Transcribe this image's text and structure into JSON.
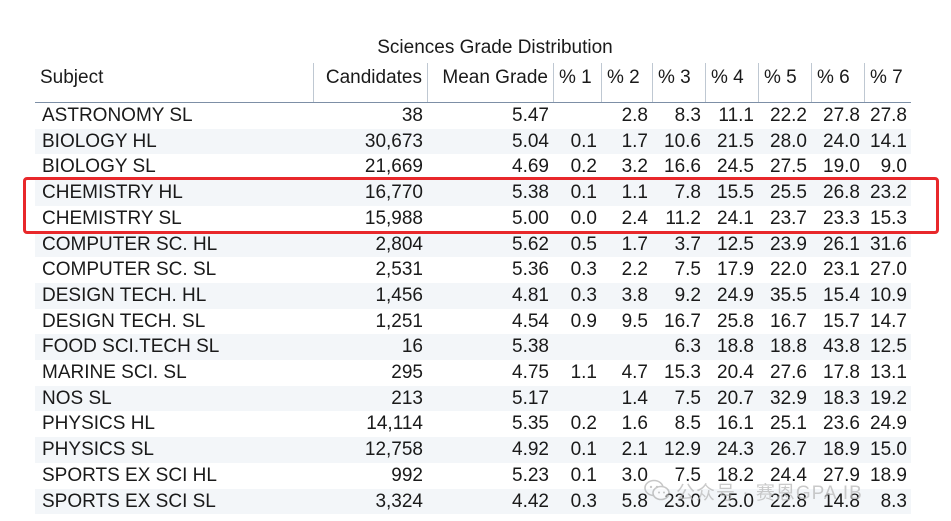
{
  "chart_data": {
    "type": "table",
    "title": "Sciences Grade Distribution",
    "columns": [
      "Subject",
      "Candidates",
      "Mean Grade",
      "% 1",
      "% 2",
      "% 3",
      "% 4",
      "% 5",
      "% 6",
      "% 7"
    ],
    "rows": [
      [
        "ASTRONOMY SL",
        "38",
        "5.47",
        "",
        "2.8",
        "8.3",
        "11.1",
        "22.2",
        "27.8",
        "27.8"
      ],
      [
        "BIOLOGY HL",
        "30,673",
        "5.04",
        "0.1",
        "1.7",
        "10.6",
        "21.5",
        "28.0",
        "24.0",
        "14.1"
      ],
      [
        "BIOLOGY SL",
        "21,669",
        "4.69",
        "0.2",
        "3.2",
        "16.6",
        "24.5",
        "27.5",
        "19.0",
        "9.0"
      ],
      [
        "CHEMISTRY HL",
        "16,770",
        "5.38",
        "0.1",
        "1.1",
        "7.8",
        "15.5",
        "25.5",
        "26.8",
        "23.2"
      ],
      [
        "CHEMISTRY SL",
        "15,988",
        "5.00",
        "0.0",
        "2.4",
        "11.2",
        "24.1",
        "23.7",
        "23.3",
        "15.3"
      ],
      [
        "COMPUTER SC. HL",
        "2,804",
        "5.62",
        "0.5",
        "1.7",
        "3.7",
        "12.5",
        "23.9",
        "26.1",
        "31.6"
      ],
      [
        "COMPUTER SC. SL",
        "2,531",
        "5.36",
        "0.3",
        "2.2",
        "7.5",
        "17.9",
        "22.0",
        "23.1",
        "27.0"
      ],
      [
        "DESIGN TECH. HL",
        "1,456",
        "4.81",
        "0.3",
        "3.8",
        "9.2",
        "24.9",
        "35.5",
        "15.4",
        "10.9"
      ],
      [
        "DESIGN TECH. SL",
        "1,251",
        "4.54",
        "0.9",
        "9.5",
        "16.7",
        "25.8",
        "16.7",
        "15.7",
        "14.7"
      ],
      [
        "FOOD SCI.TECH SL",
        "16",
        "5.38",
        "",
        "",
        "6.3",
        "18.8",
        "18.8",
        "43.8",
        "12.5"
      ],
      [
        "MARINE SCI. SL",
        "295",
        "4.75",
        "1.1",
        "4.7",
        "15.3",
        "20.4",
        "27.6",
        "17.8",
        "13.1"
      ],
      [
        "NOS SL",
        "213",
        "5.17",
        "",
        "1.4",
        "7.5",
        "20.7",
        "32.9",
        "18.3",
        "19.2"
      ],
      [
        "PHYSICS HL",
        "14,114",
        "5.35",
        "0.2",
        "1.6",
        "8.5",
        "16.1",
        "25.1",
        "23.6",
        "24.9"
      ],
      [
        "PHYSICS SL",
        "12,758",
        "4.92",
        "0.1",
        "2.1",
        "12.9",
        "24.3",
        "26.7",
        "18.9",
        "15.0"
      ],
      [
        "SPORTS EX SCI HL",
        "992",
        "5.23",
        "0.1",
        "3.0",
        "7.5",
        "18.2",
        "24.4",
        "27.9",
        "18.9"
      ],
      [
        "SPORTS EX SCI SL",
        "3,324",
        "4.42",
        "0.3",
        "5.8",
        "23.0",
        "25.0",
        "22.8",
        "14.8",
        "8.3"
      ]
    ],
    "highlighted_rows": [
      "CHEMISTRY HL",
      "CHEMISTRY SL"
    ],
    "highlight_color": "#e8282b",
    "stripe_color": "#f3f6f9"
  },
  "watermark": {
    "text": "公众号 · 赛恩GPA IB",
    "icon": "wechat-icon"
  }
}
